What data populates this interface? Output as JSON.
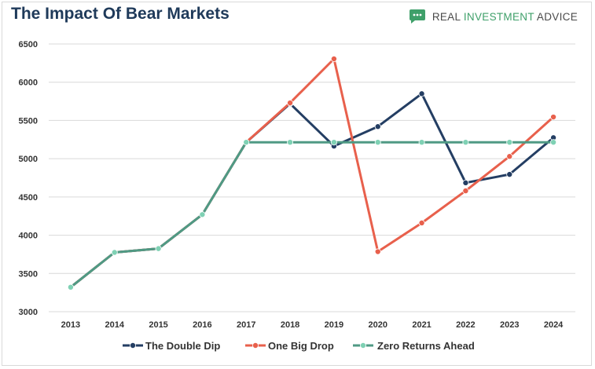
{
  "header": {
    "title": "The Impact Of Bear Markets",
    "brand_plain_1": "REAL ",
    "brand_accent": "INVESTMENT",
    "brand_plain_2": " ADVICE",
    "brand_logo_icon": "chat-bubble-icon",
    "brand_color": "#3fa06a"
  },
  "chart_data": {
    "type": "line",
    "title": "The Impact Of Bear Markets",
    "xlabel": "",
    "ylabel": "",
    "categories": [
      "2013",
      "2014",
      "2015",
      "2016",
      "2017",
      "2018",
      "2019",
      "2020",
      "2021",
      "2022",
      "2023",
      "2024"
    ],
    "ylim": [
      3000,
      6500
    ],
    "yticks": [
      3000,
      3500,
      4000,
      4500,
      5000,
      5500,
      6000,
      6500
    ],
    "grid": true,
    "legend_position": "bottom",
    "series": [
      {
        "name": "The Double Dip",
        "color": "#243e63",
        "values": [
          3320,
          3775,
          3825,
          4270,
          5215,
          5720,
          5165,
          5420,
          5850,
          4685,
          4795,
          5275
        ]
      },
      {
        "name": "One Big Drop",
        "color": "#e8604c",
        "values": [
          3320,
          3775,
          3825,
          4270,
          5215,
          5730,
          6305,
          3785,
          4160,
          4580,
          5030,
          5545
        ]
      },
      {
        "name": "Zero Returns Ahead",
        "color": "#4f9a84",
        "marker_color": "#7fd1b4",
        "values": [
          3320,
          3775,
          3825,
          4270,
          5215,
          5215,
          5215,
          5215,
          5215,
          5215,
          5215,
          5215
        ]
      }
    ]
  }
}
